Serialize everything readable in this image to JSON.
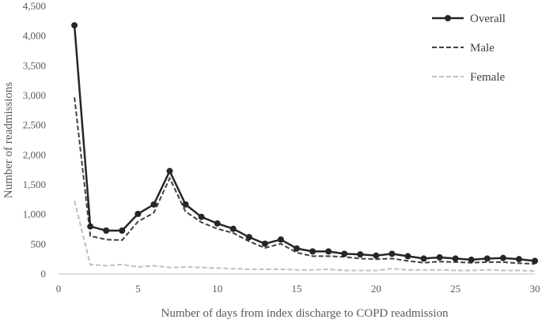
{
  "chart_data": {
    "type": "line",
    "xlabel": "Number of days from index discharge to COPD readmission",
    "ylabel": "Number of readmissions",
    "xlim": [
      0,
      30
    ],
    "ylim": [
      0,
      4500
    ],
    "x_ticks": [
      0,
      5,
      10,
      15,
      20,
      25,
      30
    ],
    "x_tick_labels": [
      "0",
      "5",
      "10",
      "15",
      "20",
      "25",
      "30"
    ],
    "y_ticks": [
      0,
      500,
      1000,
      1500,
      2000,
      2500,
      3000,
      3500,
      4000,
      4500
    ],
    "y_tick_labels": [
      "0",
      "500",
      "1,000",
      "1,500",
      "2,000",
      "2,500",
      "3,000",
      "3,500",
      "4,000",
      "4,500"
    ],
    "grid": false,
    "legend_position": "top-right",
    "x": [
      1,
      2,
      3,
      4,
      5,
      6,
      7,
      8,
      9,
      10,
      11,
      12,
      13,
      14,
      15,
      16,
      17,
      18,
      19,
      20,
      21,
      22,
      23,
      24,
      25,
      26,
      27,
      28,
      29,
      30
    ],
    "series": [
      {
        "name": "Overall",
        "style": "solid-markers",
        "color": "#262626",
        "values": [
          4180,
          800,
          730,
          730,
          1010,
          1170,
          1730,
          1170,
          960,
          850,
          760,
          620,
          510,
          580,
          430,
          380,
          380,
          340,
          330,
          310,
          340,
          300,
          260,
          280,
          260,
          240,
          260,
          270,
          250,
          220
        ]
      },
      {
        "name": "Male",
        "style": "dashed",
        "color": "#404040",
        "values": [
          2970,
          640,
          580,
          570,
          880,
          1030,
          1610,
          1050,
          870,
          760,
          690,
          550,
          440,
          510,
          360,
          300,
          300,
          290,
          260,
          250,
          260,
          220,
          190,
          210,
          200,
          190,
          200,
          200,
          180,
          170
        ]
      },
      {
        "name": "Female",
        "style": "dashed",
        "color": "#bfbfbf",
        "values": [
          1230,
          160,
          140,
          160,
          120,
          140,
          110,
          120,
          110,
          100,
          90,
          80,
          80,
          80,
          70,
          70,
          80,
          60,
          60,
          60,
          90,
          70,
          70,
          70,
          60,
          60,
          70,
          60,
          60,
          50
        ]
      }
    ]
  }
}
